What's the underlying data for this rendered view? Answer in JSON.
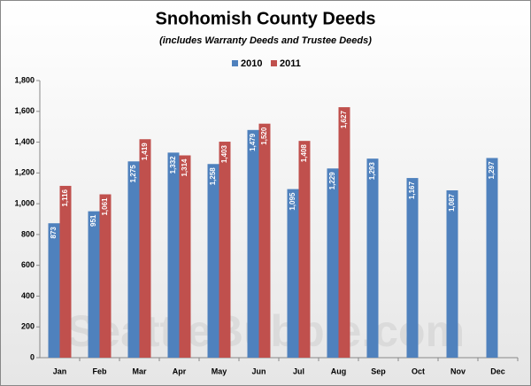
{
  "chart_data": {
    "type": "bar",
    "title": "Snohomish County Deeds",
    "subtitle": "(includes Warranty Deeds and Trustee Deeds)",
    "watermark": "SeattleBubble.com",
    "categories": [
      "Jan",
      "Feb",
      "Mar",
      "Apr",
      "May",
      "Jun",
      "Jul",
      "Aug",
      "Sep",
      "Oct",
      "Nov",
      "Dec"
    ],
    "series": [
      {
        "name": "2010",
        "color": "#4f81bd",
        "values": [
          873,
          951,
          1275,
          1332,
          1258,
          1479,
          1095,
          1229,
          1293,
          1167,
          1087,
          1297
        ],
        "value_labels": [
          "873",
          "951",
          "1,275",
          "1,332",
          "1,258",
          "1,479",
          "1,095",
          "1,229",
          "1,293",
          "1,167",
          "1,087",
          "1,297"
        ]
      },
      {
        "name": "2011",
        "color": "#c0504d",
        "values": [
          1116,
          1061,
          1419,
          1314,
          1403,
          1520,
          1408,
          1627,
          null,
          null,
          null,
          null
        ],
        "value_labels": [
          "1,116",
          "1,061",
          "1,419",
          "1,314",
          "1,403",
          "1,520",
          "1,408",
          "1,627",
          null,
          null,
          null,
          null
        ]
      }
    ],
    "ylim": [
      0,
      1800
    ],
    "yticks": [
      0,
      200,
      400,
      600,
      800,
      {
        "value": 1000,
        "label": "1,000"
      },
      {
        "value": 1200,
        "label": "1,200"
      },
      {
        "value": 1400,
        "label": "1,400"
      },
      {
        "value": 1600,
        "label": "1,600"
      },
      {
        "value": 1800,
        "label": "1,800"
      }
    ],
    "grid": false,
    "legend": "top"
  }
}
